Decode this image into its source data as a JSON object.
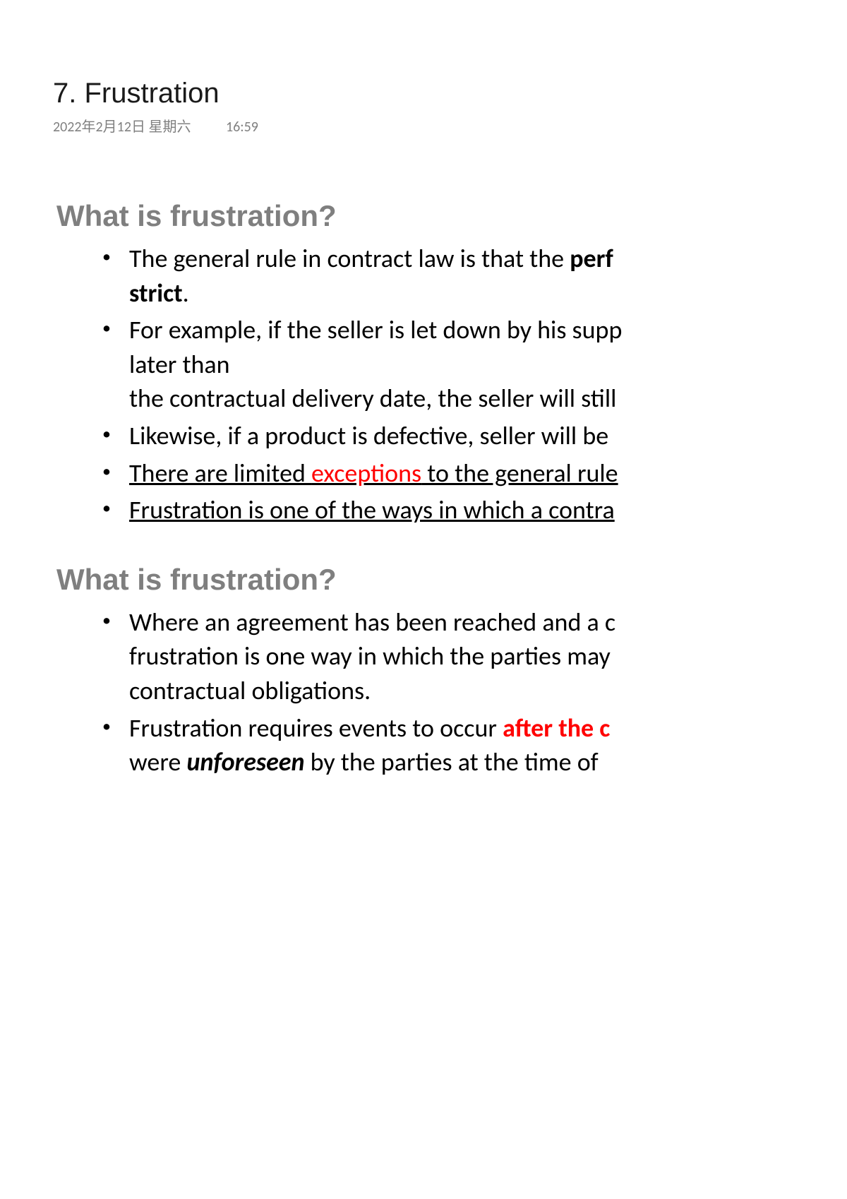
{
  "title": "7. Frustration",
  "meta": {
    "date": "2022年2月12日 星期六",
    "time": "16:59"
  },
  "section1": {
    "heading": "What is frustration?",
    "b1_a": "The general rule in contract law is that the ",
    "b1_b": "perf",
    "b1_c": "strict",
    "b1_d": ".",
    "b2_a": "For example, if the seller is let down by his supp",
    "b2_b": "later than",
    "b2_c": "the contractual delivery date, the seller will still",
    "b3": "Likewise, if a product is defective, seller will be ",
    "b4_a": "There are limited ",
    "b4_b": "exceptions",
    "b4_c": " to the general rule",
    "b5": "Frustration is one of the ways in which a contra"
  },
  "section2": {
    "heading": "What is frustration?",
    "b1_a": "Where an agreement has been reached and a c",
    "b1_b": "frustration is one way in which the parties may ",
    "b1_c": "contractual obligations.",
    "b2_a": "Frustration requires events to occur ",
    "b2_b": "after the c",
    "b2_c": "were ",
    "b2_d": "unforeseen",
    "b2_e": " by the parties at the time of"
  },
  "colors": {
    "heading_gray": "#7f7f7f",
    "meta_gray": "#808080",
    "text_black": "#000000",
    "emphasis_red": "#ff0000",
    "background": "#ffffff"
  },
  "typography": {
    "title_size_pt": 30,
    "heading_size_pt": 32,
    "body_size_pt": 27,
    "meta_size_pt": 15
  }
}
